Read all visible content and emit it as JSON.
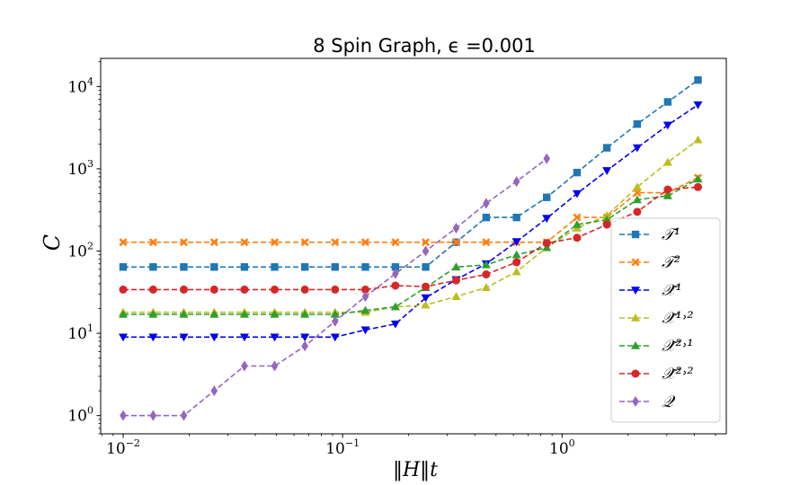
{
  "chart_data": {
    "type": "line",
    "title": "8 Spin Graph, ϵ =0.001",
    "xlabel": "‖H‖t",
    "ylabel": "C",
    "xscale": "log",
    "yscale": "log",
    "xlim": [
      0.0079,
      5.6
    ],
    "ylim": [
      0.6,
      22000
    ],
    "x_ticks": [
      {
        "value": 0.01,
        "base": "10",
        "exp": "−2"
      },
      {
        "value": 0.1,
        "base": "10",
        "exp": "−1"
      },
      {
        "value": 1,
        "base": "10",
        "exp": "0"
      }
    ],
    "y_ticks": [
      {
        "value": 1,
        "base": "10",
        "exp": "0"
      },
      {
        "value": 10,
        "base": "10",
        "exp": "1"
      },
      {
        "value": 100,
        "base": "10",
        "exp": "2"
      },
      {
        "value": 1000,
        "base": "10",
        "exp": "3"
      },
      {
        "value": 10000,
        "base": "10",
        "exp": "4"
      }
    ],
    "legend_position": "lower-right",
    "series": [
      {
        "name": "𝒯¹",
        "color": "#1f77b4",
        "marker": "square",
        "x": [
          0.01,
          0.0137,
          0.0189,
          0.026,
          0.0357,
          0.049,
          0.0673,
          0.0924,
          0.127,
          0.174,
          0.239,
          0.329,
          0.451,
          0.62,
          0.851,
          1.17,
          1.6,
          2.2,
          3.03,
          4.16
        ],
        "y": [
          64,
          64,
          64,
          64,
          64,
          64,
          64,
          64,
          64,
          64,
          64,
          128,
          256,
          256,
          450,
          900,
          1800,
          3500,
          6500,
          12000
        ]
      },
      {
        "name": "𝒯²",
        "color": "#ff7f0e",
        "marker": "x",
        "x": [
          0.01,
          0.0137,
          0.0189,
          0.026,
          0.0357,
          0.049,
          0.0673,
          0.0924,
          0.127,
          0.174,
          0.239,
          0.329,
          0.451,
          0.62,
          0.851,
          1.17,
          1.6,
          2.2,
          3.03,
          4.16
        ],
        "y": [
          128,
          128,
          128,
          128,
          128,
          128,
          128,
          128,
          128,
          128,
          128,
          128,
          128,
          128,
          128,
          256,
          256,
          512,
          512,
          780
        ]
      },
      {
        "name": "𝒳̃¹",
        "color": "#0000ee",
        "marker": "triangle-down",
        "x": [
          0.01,
          0.0137,
          0.0189,
          0.026,
          0.0357,
          0.049,
          0.0673,
          0.0924,
          0.127,
          0.174,
          0.239,
          0.329,
          0.451,
          0.62,
          0.851,
          1.17,
          1.6,
          2.2,
          3.03,
          4.16
        ],
        "y": [
          9,
          9,
          9,
          9,
          9,
          9,
          9,
          9,
          11,
          13,
          27,
          45,
          70,
          130,
          250,
          500,
          950,
          1800,
          3400,
          6000
        ]
      },
      {
        "name": "𝒳̃¹˒²",
        "color": "#bcbd22",
        "marker": "triangle-up",
        "x": [
          0.01,
          0.0137,
          0.0189,
          0.026,
          0.0357,
          0.049,
          0.0673,
          0.0924,
          0.127,
          0.174,
          0.239,
          0.329,
          0.451,
          0.62,
          0.851,
          1.17,
          1.6,
          2.2,
          3.03,
          4.16
        ],
        "y": [
          18,
          18,
          18,
          18,
          18,
          18,
          18,
          18,
          18,
          21,
          22,
          28,
          36,
          56,
          110,
          190,
          270,
          600,
          1200,
          2250
        ]
      },
      {
        "name": "𝒳̃²˒¹",
        "color": "#2ca02c",
        "marker": "triangle-up",
        "x": [
          0.01,
          0.0137,
          0.0189,
          0.026,
          0.0357,
          0.049,
          0.0673,
          0.0924,
          0.127,
          0.174,
          0.239,
          0.329,
          0.451,
          0.62,
          0.851,
          1.17,
          1.6,
          2.2,
          3.03,
          4.16
        ],
        "y": [
          17,
          17,
          17,
          17,
          17,
          17,
          17,
          17,
          19,
          21,
          36,
          64,
          68,
          90,
          110,
          210,
          240,
          420,
          470,
          750
        ]
      },
      {
        "name": "𝒳̃²˒²",
        "color": "#d62728",
        "marker": "circle",
        "x": [
          0.01,
          0.0137,
          0.0189,
          0.026,
          0.0357,
          0.049,
          0.0673,
          0.0924,
          0.127,
          0.174,
          0.239,
          0.329,
          0.451,
          0.62,
          0.851,
          1.17,
          1.6,
          2.2,
          3.03,
          4.16
        ],
        "y": [
          34,
          34,
          34,
          34,
          34,
          34,
          34,
          34,
          34,
          38,
          37,
          44,
          52,
          73,
          125,
          145,
          210,
          300,
          560,
          600
        ]
      },
      {
        "name": "𝒬",
        "color": "#9467bd",
        "marker": "diamond",
        "x": [
          0.01,
          0.0137,
          0.0189,
          0.026,
          0.0357,
          0.049,
          0.0673,
          0.0924,
          0.127,
          0.174,
          0.239,
          0.329,
          0.451,
          0.62,
          0.851
        ],
        "y": [
          1,
          1,
          1,
          2,
          4,
          4,
          7,
          14,
          28,
          53,
          100,
          190,
          380,
          700,
          1330
        ]
      }
    ]
  }
}
